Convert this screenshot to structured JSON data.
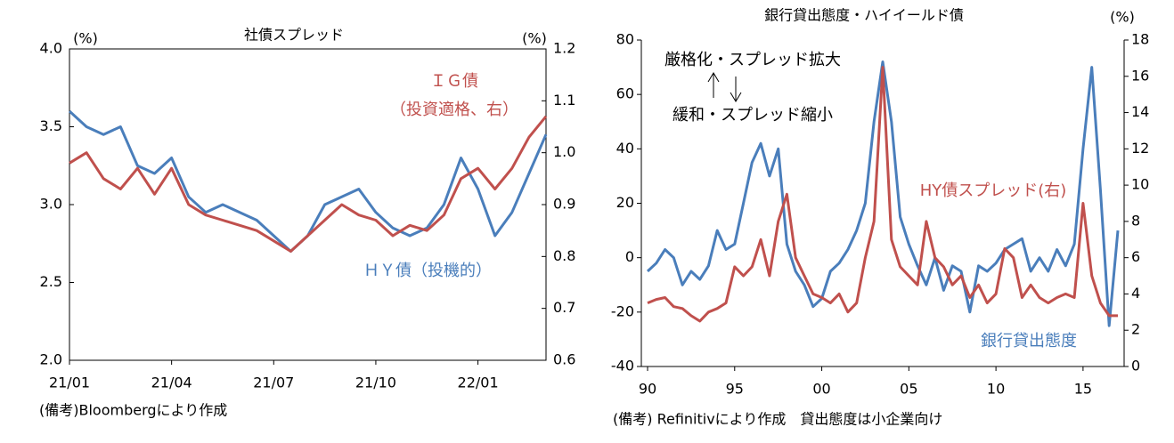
{
  "chart_data": [
    {
      "type": "line",
      "title": "社債スプレッド",
      "ylabel": "(%)",
      "y2label": "(%)",
      "categories": [
        "21/01",
        null,
        null,
        null,
        null,
        null,
        "21/04",
        null,
        null,
        null,
        null,
        null,
        "21/07",
        null,
        null,
        null,
        null,
        null,
        "21/10",
        null,
        null,
        null,
        null,
        null,
        "22/01",
        null,
        null,
        null,
        null
      ],
      "series": [
        {
          "name": "ＨＹ債（投機的）",
          "color": "#4a7ebb",
          "values": [
            3.6,
            3.5,
            3.45,
            3.5,
            3.25,
            3.2,
            3.3,
            3.05,
            2.95,
            3.0,
            2.95,
            2.9,
            2.8,
            2.7,
            2.8,
            3.0,
            3.05,
            3.1,
            2.95,
            2.85,
            2.8,
            2.85,
            3.0,
            3.3,
            3.1,
            2.8,
            2.95,
            3.2,
            3.45
          ]
        },
        {
          "name": "ＩＧ債",
          "color": "#c0504d",
          "axis": "y2",
          "values": [
            0.98,
            1.0,
            0.95,
            0.93,
            0.97,
            0.92,
            0.97,
            0.9,
            0.88,
            0.87,
            0.86,
            0.85,
            0.83,
            0.81,
            0.84,
            0.87,
            0.9,
            0.88,
            0.87,
            0.84,
            0.86,
            0.85,
            0.88,
            0.95,
            0.97,
            0.93,
            0.97,
            1.03,
            1.07
          ]
        }
      ],
      "annotations": [
        "（投資適格、右）"
      ],
      "ylim": [
        2,
        4
      ],
      "yticks": [
        {
          "value": 2,
          "label": "2.0"
        },
        2.5,
        {
          "value": 3,
          "label": "3.0"
        },
        3.5,
        {
          "value": 4,
          "label": "4.0"
        }
      ],
      "y2lim": [
        0.6,
        1.2
      ],
      "y2ticks": [
        0.6,
        0.7,
        0.8,
        0.9,
        {
          "value": 1,
          "label": "1.0"
        },
        1.1,
        1.2
      ],
      "grid": false,
      "note": "(備考)Bloombergにより作成"
    },
    {
      "type": "line",
      "title": "銀行貸出態度・ハイイールド債",
      "y2label": "(%)",
      "categories": [
        "90",
        null,
        null,
        null,
        null,
        null,
        null,
        null,
        null,
        null,
        "95",
        null,
        null,
        null,
        null,
        null,
        null,
        null,
        null,
        null,
        "00",
        null,
        null,
        null,
        null,
        null,
        null,
        null,
        null,
        null,
        "05",
        null,
        null,
        null,
        null,
        null,
        null,
        null,
        null,
        null,
        "10",
        null,
        null,
        null,
        null,
        null,
        null,
        null,
        null,
        null,
        "15",
        null,
        null,
        null,
        null
      ],
      "series": [
        {
          "name": "銀行貸出態度",
          "color": "#4a7ebb",
          "values": [
            -5,
            -2,
            3,
            0,
            -10,
            -5,
            -8,
            -3,
            10,
            3,
            5,
            20,
            35,
            42,
            30,
            40,
            5,
            -5,
            -10,
            -18,
            -15,
            -5,
            -2,
            3,
            10,
            20,
            50,
            72,
            50,
            15,
            5,
            -3,
            -10,
            0,
            -12,
            -3,
            -5,
            -20,
            -3,
            -5,
            -2,
            3,
            5,
            7,
            -5,
            0,
            -5,
            3,
            -3,
            5,
            40,
            70,
            25,
            -25,
            10
          ]
        },
        {
          "name": "HY債スプレッド(右)",
          "color": "#c0504d",
          "axis": "y2",
          "values": [
            3.5,
            3.7,
            3.8,
            3.3,
            3.2,
            2.8,
            2.5,
            3.0,
            3.2,
            3.5,
            5.5,
            5.0,
            5.5,
            7.0,
            5.0,
            8.0,
            9.5,
            6.0,
            5.0,
            4.0,
            3.8,
            3.5,
            4.0,
            3.0,
            3.5,
            6.0,
            8.0,
            16.5,
            7.0,
            5.5,
            5.0,
            4.5,
            8.0,
            6.0,
            5.5,
            4.5,
            5.0,
            3.8,
            4.5,
            3.5,
            4.0,
            6.5,
            6.0,
            3.8,
            4.5,
            3.8,
            3.5,
            3.8,
            4.0,
            3.8,
            9.0,
            5.0,
            3.5,
            2.8,
            2.8
          ]
        }
      ],
      "annotations": [
        "厳格化・スプレッド拡大",
        "緩和・スプレッド縮小"
      ],
      "ylim": [
        -40,
        80
      ],
      "yticks": [
        -40,
        -20,
        0,
        20,
        40,
        60,
        80
      ],
      "y2lim": [
        0,
        18
      ],
      "y2ticks": [
        0,
        2,
        4,
        6,
        8,
        10,
        12,
        14,
        16,
        18
      ],
      "grid": false,
      "note": "(備考) Refinitivにより作成　貸出態度は小企業向け"
    }
  ]
}
